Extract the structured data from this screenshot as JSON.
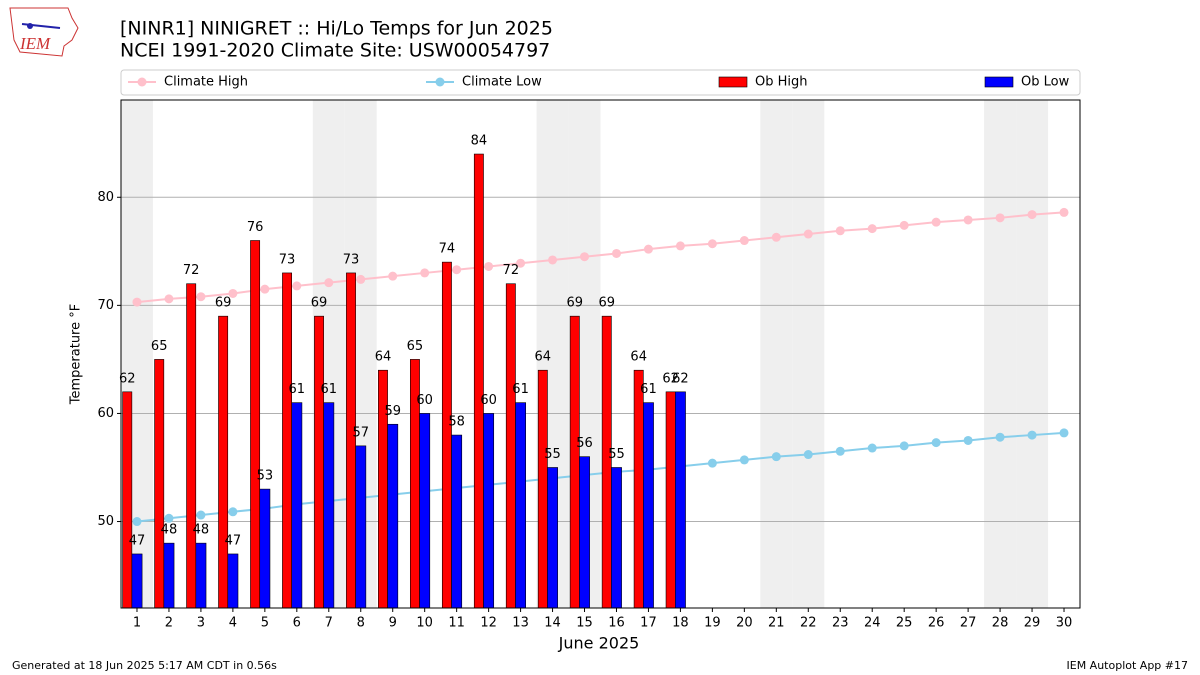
{
  "chart_data": {
    "type": "bar",
    "title": "[NINR1] NINIGRET :: Hi/Lo Temps for Jun 2025",
    "subtitle": "NCEI 1991-2020 Climate Site: USW00054797",
    "x_label": "June 2025",
    "y_label": "Temperature °F",
    "x": [
      1,
      2,
      3,
      4,
      5,
      6,
      7,
      8,
      9,
      10,
      11,
      12,
      13,
      14,
      15,
      16,
      17,
      18,
      19,
      20,
      21,
      22,
      23,
      24,
      25,
      26,
      27,
      28,
      29,
      30
    ],
    "xlim": [
      0.5,
      30.5
    ],
    "xticks": [
      1,
      2,
      3,
      4,
      5,
      6,
      7,
      8,
      9,
      10,
      11,
      12,
      13,
      14,
      15,
      16,
      17,
      18,
      19,
      20,
      21,
      22,
      23,
      24,
      25,
      26,
      27,
      28,
      29,
      30
    ],
    "ylim": [
      42,
      89
    ],
    "yticks": [
      50,
      60,
      70,
      80
    ],
    "grid": true,
    "legend": "top",
    "highlight_days": [
      1,
      7,
      8,
      14,
      15,
      21,
      22,
      28,
      29
    ],
    "series": [
      {
        "name": "Climate High",
        "type": "line",
        "color": "#ffc0cb",
        "values": [
          70.3,
          70.6,
          70.8,
          71.1,
          71.5,
          71.8,
          72.1,
          72.4,
          72.7,
          73.0,
          73.3,
          73.6,
          73.9,
          74.2,
          74.5,
          74.8,
          75.2,
          75.5,
          75.7,
          76.0,
          76.3,
          76.6,
          76.9,
          77.1,
          77.4,
          77.7,
          77.9,
          78.1,
          78.4,
          78.6
        ]
      },
      {
        "name": "Climate Low",
        "type": "line",
        "color": "#87ceeb",
        "values": [
          50.0,
          50.3,
          50.6,
          50.9,
          51.2,
          51.6,
          51.9,
          52.2,
          52.5,
          52.8,
          53.1,
          53.4,
          53.7,
          54.0,
          54.3,
          54.6,
          54.8,
          55.1,
          55.4,
          55.7,
          56.0,
          56.2,
          56.5,
          56.8,
          57.0,
          57.3,
          57.5,
          57.8,
          58.0,
          58.2
        ]
      },
      {
        "name": "Ob High",
        "type": "bar",
        "color": "#ff0000",
        "values": [
          62,
          65,
          72,
          69,
          76,
          73,
          69,
          73,
          64,
          65,
          74,
          84,
          72,
          64,
          69,
          69,
          64,
          62,
          null,
          null,
          null,
          null,
          null,
          null,
          null,
          null,
          null,
          null,
          null,
          null
        ]
      },
      {
        "name": "Ob Low",
        "type": "bar",
        "color": "#0000ff",
        "values": [
          47,
          48,
          48,
          47,
          53,
          61,
          61,
          57,
          59,
          60,
          58,
          60,
          61,
          55,
          56,
          55,
          61,
          62,
          null,
          null,
          null,
          null,
          null,
          null,
          null,
          null,
          null,
          null,
          null,
          null
        ]
      }
    ]
  },
  "footer_left": "Generated at 18 Jun 2025 5:17 AM CDT in 0.56s",
  "footer_right": "IEM Autoplot App #17",
  "logo_text": "IEM"
}
